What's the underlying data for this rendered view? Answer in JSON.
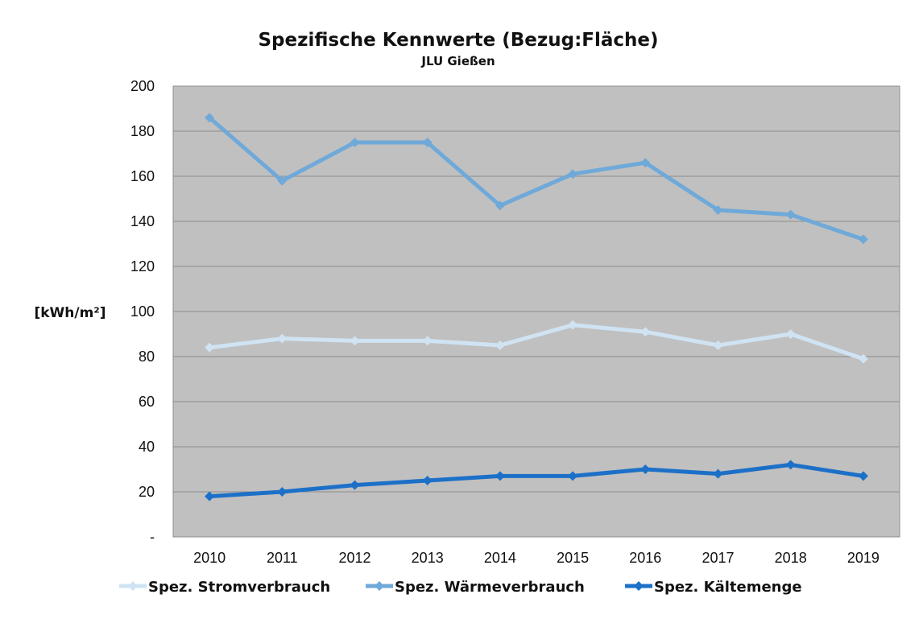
{
  "chart_data": {
    "type": "line",
    "title": "Spezifische Kennwerte (Bezug:Fläche)",
    "subtitle": "JLU Gießen",
    "ylabel": "[kWh/m²]",
    "xlabel": "",
    "ylim": [
      0,
      200
    ],
    "y_ticks": [
      "-",
      "20",
      "40",
      "60",
      "80",
      "100",
      "120",
      "140",
      "160",
      "180",
      "200"
    ],
    "categories": [
      "2010",
      "2011",
      "2012",
      "2013",
      "2014",
      "2015",
      "2016",
      "2017",
      "2018",
      "2019"
    ],
    "grid": true,
    "legend_position": "bottom",
    "plot_background": "#c0c0c0",
    "series": [
      {
        "name": "Spez. Stromverbrauch",
        "color": "#cfe3f3",
        "values": [
          84,
          88,
          87,
          87,
          85,
          94,
          91,
          85,
          90,
          79
        ]
      },
      {
        "name": "Spez. Wärmeverbrauch",
        "color": "#6fa9d9",
        "values": [
          186,
          158,
          175,
          175,
          147,
          161,
          166,
          145,
          143,
          132
        ]
      },
      {
        "name": "Spez. Kältemenge",
        "color": "#1c70c8",
        "values": [
          18,
          20,
          23,
          25,
          27,
          27,
          30,
          28,
          32,
          27
        ]
      }
    ]
  }
}
